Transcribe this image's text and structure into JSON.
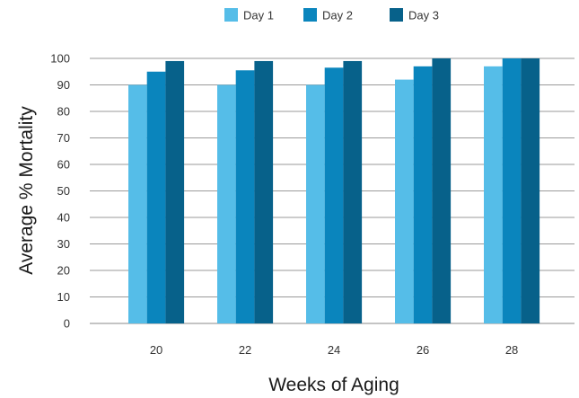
{
  "chart_data": {
    "type": "bar",
    "categories": [
      "20",
      "22",
      "24",
      "26",
      "28"
    ],
    "series": [
      {
        "name": "Day 1",
        "color": "#55bde8",
        "values": [
          90,
          90,
          90,
          92,
          97
        ]
      },
      {
        "name": "Day 2",
        "color": "#0a85bd",
        "values": [
          95,
          95.5,
          96.5,
          97,
          100
        ]
      },
      {
        "name": "Day 3",
        "color": "#07618a",
        "values": [
          99,
          99,
          99,
          100,
          100
        ]
      }
    ],
    "xlabel": "Weeks of Aging",
    "ylabel": "Average % Mortality",
    "ylim": [
      0,
      100
    ],
    "yticks": [
      "0",
      "10",
      "20",
      "30",
      "40",
      "50",
      "60",
      "70",
      "80",
      "90",
      "100"
    ],
    "grid": true,
    "legend": "top-center"
  }
}
